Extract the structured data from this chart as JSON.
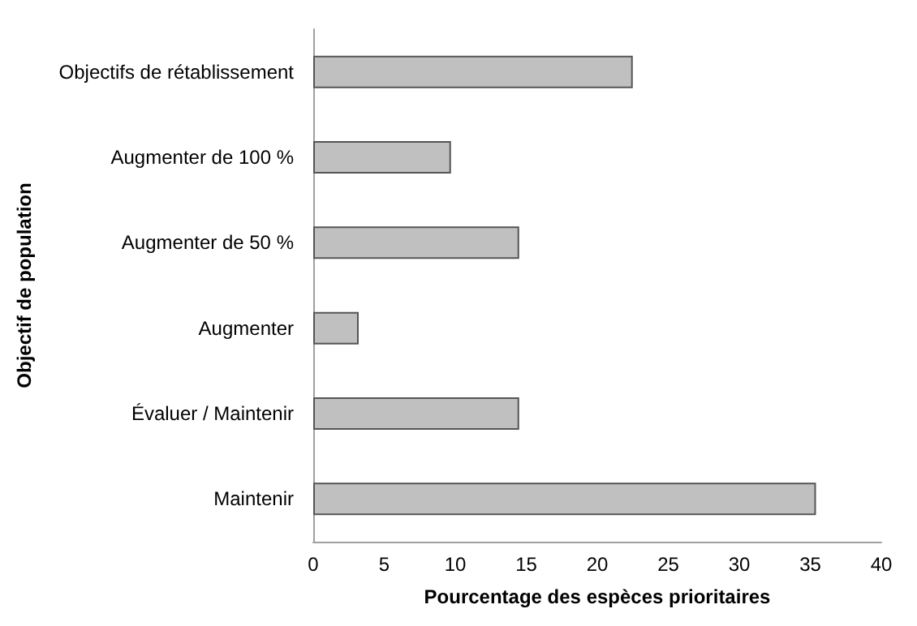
{
  "chart_data": {
    "type": "bar",
    "orientation": "horizontal",
    "xlabel": "Pourcentage des espèces prioritaires",
    "ylabel": "Objectif de population",
    "categories": [
      "Objectifs de rétablissement",
      "Augmenter de 100 %",
      "Augmenter de 50 %",
      "Augmenter",
      "Évaluer / Maintenir",
      "Maintenir"
    ],
    "values": [
      22.5,
      9.7,
      14.5,
      3.2,
      14.5,
      35.4
    ],
    "color": "#c0c0c0",
    "xlim": [
      0,
      40
    ],
    "xticks": [
      0,
      5,
      10,
      15,
      20,
      25,
      30,
      35,
      40
    ],
    "grid": false
  }
}
